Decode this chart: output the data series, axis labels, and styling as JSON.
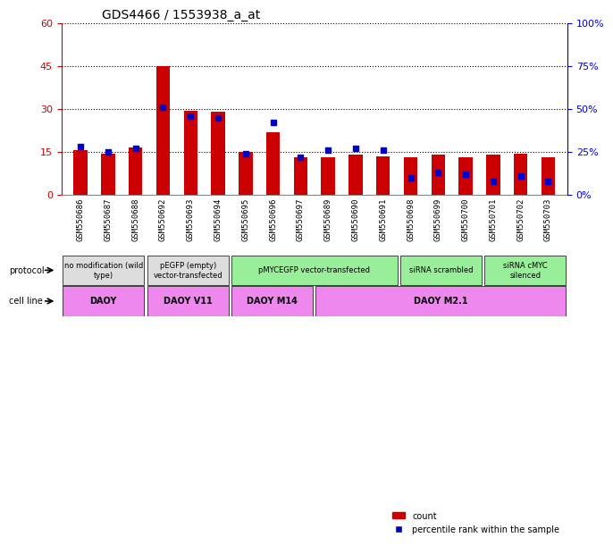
{
  "title": "GDS4466 / 1553938_a_at",
  "samples": [
    "GSM550686",
    "GSM550687",
    "GSM550688",
    "GSM550692",
    "GSM550693",
    "GSM550694",
    "GSM550695",
    "GSM550696",
    "GSM550697",
    "GSM550689",
    "GSM550690",
    "GSM550691",
    "GSM550698",
    "GSM550699",
    "GSM550700",
    "GSM550701",
    "GSM550702",
    "GSM550703"
  ],
  "counts": [
    15.5,
    14.5,
    16.5,
    45,
    29.5,
    29,
    15,
    22,
    13,
    13,
    14,
    13.5,
    13,
    14,
    13,
    14,
    14.5,
    13
  ],
  "percentiles": [
    28,
    25,
    27,
    51,
    46,
    45,
    24,
    42,
    22,
    26,
    27,
    26,
    10,
    13,
    12,
    8,
    11,
    8
  ],
  "ylim_left": [
    0,
    60
  ],
  "ylim_right": [
    0,
    100
  ],
  "yticks_left": [
    0,
    15,
    30,
    45,
    60
  ],
  "yticks_right": [
    0,
    25,
    50,
    75,
    100
  ],
  "bar_color": "#cc0000",
  "dot_color": "#0000cc",
  "grid_color": "#000000",
  "bg_color": "#ffffff",
  "protocol_groups": [
    {
      "label": "no modification (wild\ntype)",
      "start": 0,
      "end": 3,
      "color": "#dddddd"
    },
    {
      "label": "pEGFP (empty)\nvector-transfected",
      "start": 3,
      "end": 6,
      "color": "#dddddd"
    },
    {
      "label": "pMYCEGFP vector-transfected",
      "start": 6,
      "end": 12,
      "color": "#99ee99"
    },
    {
      "label": "siRNA scrambled",
      "start": 12,
      "end": 15,
      "color": "#99ee99"
    },
    {
      "label": "siRNA cMYC\nsilenced",
      "start": 15,
      "end": 18,
      "color": "#99ee99"
    }
  ],
  "cellline_groups": [
    {
      "label": "DAOY",
      "start": 0,
      "end": 3,
      "color": "#ee88ee"
    },
    {
      "label": "DAOY V11",
      "start": 3,
      "end": 6,
      "color": "#ee88ee"
    },
    {
      "label": "DAOY M14",
      "start": 6,
      "end": 9,
      "color": "#ee88ee"
    },
    {
      "label": "DAOY M2.1",
      "start": 9,
      "end": 18,
      "color": "#ee88ee"
    }
  ],
  "left_axis_color": "#cc0000",
  "right_axis_color": "#0000cc",
  "bar_width": 0.5
}
